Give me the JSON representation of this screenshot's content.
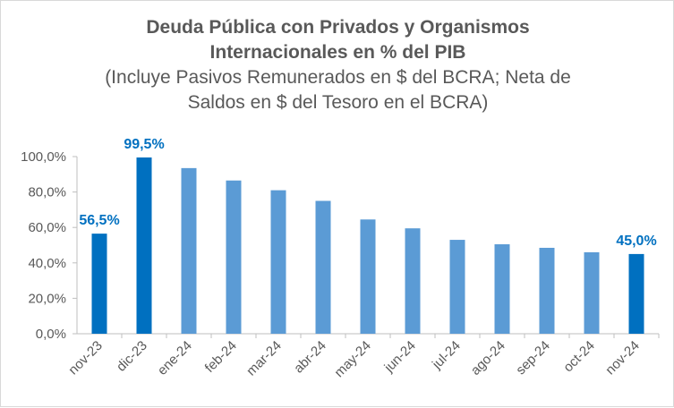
{
  "chart_data": {
    "type": "bar",
    "title_line1": "Deuda Pública con Privados y Organismos",
    "title_line2": "Internacionales en % del PIB",
    "subtitle_line1": "(Incluye Pasivos Remunerados en $ del BCRA; Neta de",
    "subtitle_line2": "Saldos en $ del Tesoro en el BCRA)",
    "categories": [
      "nov-23",
      "dic-23",
      "ene-24",
      "feb-24",
      "mar-24",
      "abr-24",
      "may-24",
      "jun-24",
      "jul-24",
      "ago-24",
      "sep-24",
      "oct-24",
      "nov-24"
    ],
    "values": [
      56.5,
      99.5,
      93.5,
      86.5,
      81.0,
      75.0,
      64.5,
      59.5,
      53.0,
      50.5,
      48.5,
      46.0,
      45.0
    ],
    "highlight": [
      true,
      true,
      false,
      false,
      false,
      false,
      false,
      false,
      false,
      false,
      false,
      false,
      true
    ],
    "data_labels": [
      "56,5%",
      "99,5%",
      "",
      "",
      "",
      "",
      "",
      "",
      "",
      "",
      "",
      "",
      "45,0%"
    ],
    "ylim": [
      0,
      100
    ],
    "yticks": [
      0,
      20,
      40,
      60,
      80,
      100
    ],
    "ytick_labels": [
      "0,0%",
      "20,0%",
      "40,0%",
      "60,0%",
      "80,0%",
      "100,0%"
    ],
    "xlabel": "",
    "ylabel": "",
    "colors": {
      "highlight": "#0070c0",
      "normal": "#5b9bd5",
      "axis": "#bfbfbf",
      "label": "#0070c0"
    }
  }
}
